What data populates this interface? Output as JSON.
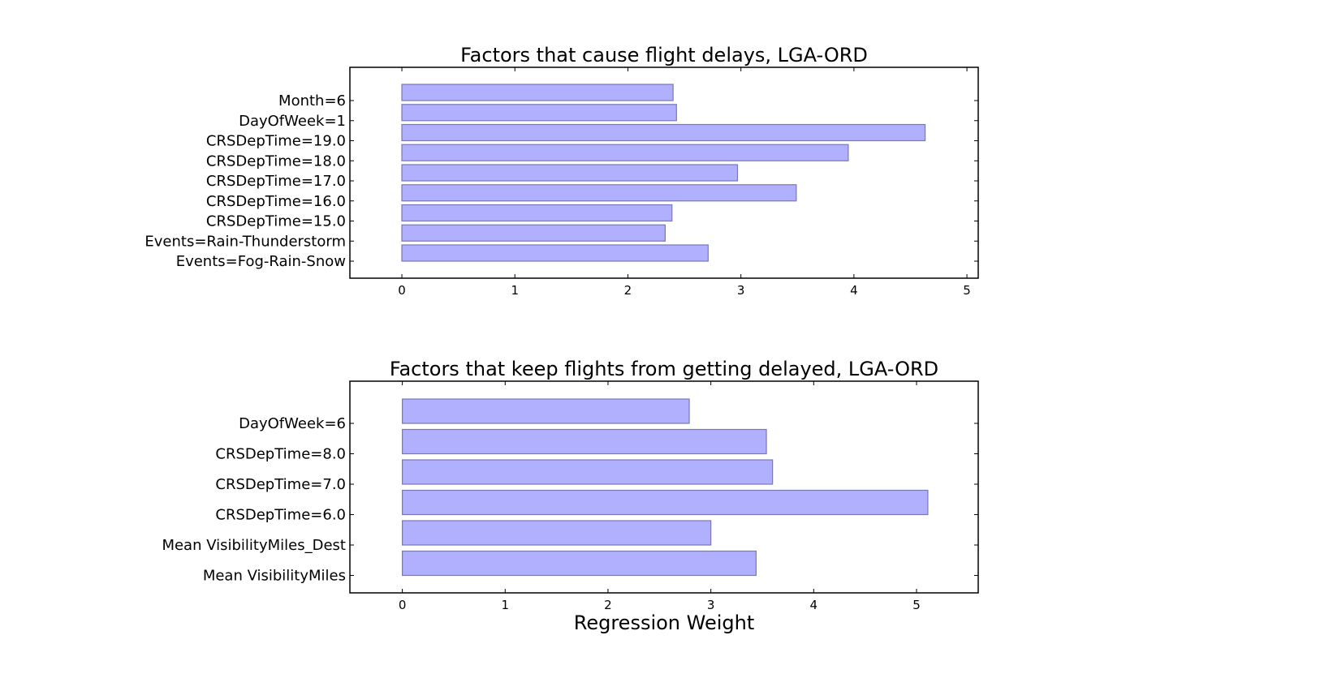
{
  "chart_data": [
    {
      "type": "bar",
      "orientation": "horizontal",
      "title": "Factors that cause flight delays, LGA-ORD",
      "xlabel": "",
      "ylabel": "",
      "categories": [
        "Month=6",
        "DayOfWeek=1",
        "CRSDepTime=19.0",
        "CRSDepTime=18.0",
        "CRSDepTime=17.0",
        "CRSDepTime=16.0",
        "CRSDepTime=15.0",
        "Events=Rain-Thunderstorm",
        "Events=Fog-Rain-Snow"
      ],
      "values": [
        2.4,
        2.43,
        4.63,
        3.95,
        2.97,
        3.49,
        2.39,
        2.33,
        2.71
      ],
      "xlim": [
        -0.46,
        5.1
      ],
      "xticks": [
        "0",
        "1",
        "2",
        "3",
        "4",
        "5"
      ],
      "grid": false,
      "bar_color": "#b0b0ff",
      "bar_edge_color": "#7878b8"
    },
    {
      "type": "bar",
      "orientation": "horizontal",
      "title": "Factors that keep flights from getting delayed, LGA-ORD",
      "xlabel": "Regression Weight",
      "ylabel": "",
      "categories": [
        "DayOfWeek=6",
        "CRSDepTime=8.0",
        "CRSDepTime=7.0",
        "CRSDepTime=6.0",
        "Mean VisibilityMiles_Dest",
        "Mean VisibilityMiles"
      ],
      "values": [
        2.79,
        3.54,
        3.6,
        5.11,
        3.0,
        3.44
      ],
      "xlim": [
        -0.51,
        5.6
      ],
      "xticks": [
        "0",
        "1",
        "2",
        "3",
        "4",
        "5"
      ],
      "grid": false,
      "bar_color": "#b0b0ff",
      "bar_edge_color": "#7878b8"
    }
  ]
}
